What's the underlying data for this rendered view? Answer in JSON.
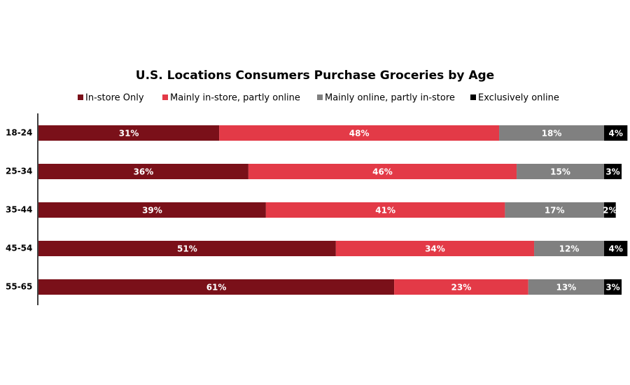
{
  "chart_data": {
    "type": "stacked-barh",
    "title": "U.S. Locations Consumers Purchase Groceries by Age",
    "categories": [
      "18-24",
      "25-34",
      "35-44",
      "45-54",
      "55-65"
    ],
    "series": [
      {
        "name": "In-store Only",
        "color": "#7a1019",
        "values": [
          31,
          36,
          39,
          51,
          61
        ],
        "value_labels": [
          "31%",
          "36%",
          "39%",
          "51%",
          "61%"
        ]
      },
      {
        "name": "Mainly in-store, partly online",
        "color": "#e33a47",
        "values": [
          48,
          46,
          41,
          34,
          23
        ],
        "value_labels": [
          "48%",
          "46%",
          "41%",
          "34%",
          "23%"
        ]
      },
      {
        "name": "Mainly online, partly in-store",
        "color": "#808080",
        "values": [
          18,
          15,
          17,
          12,
          13
        ],
        "value_labels": [
          "18%",
          "15%",
          "17%",
          "12%",
          "13%"
        ]
      },
      {
        "name": "Exclusively online",
        "color": "#000000",
        "values": [
          4,
          3,
          2,
          4,
          3
        ],
        "value_labels": [
          "4%",
          "3%",
          "2%",
          "4%",
          "3%"
        ]
      }
    ]
  }
}
